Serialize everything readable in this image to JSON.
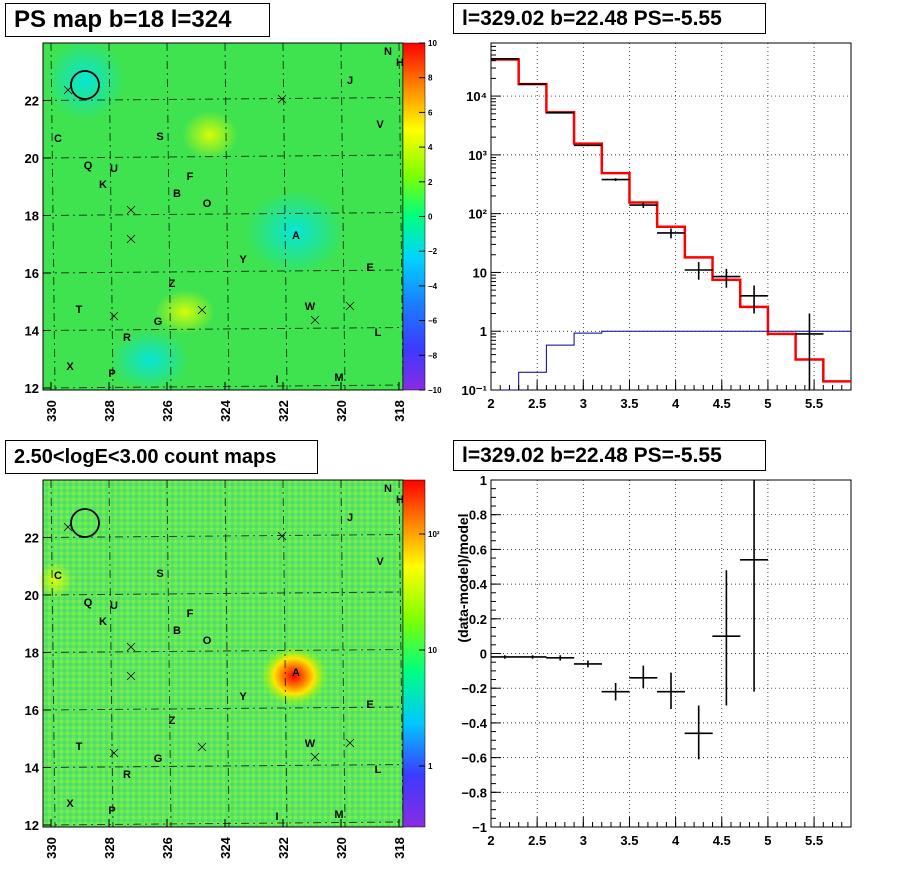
{
  "panels": {
    "ps_map": {
      "title": "PS map b=18 l=324",
      "xticks": [
        "330",
        "328",
        "326",
        "324",
        "322",
        "320",
        "318"
      ],
      "yticks": [
        "12",
        "14",
        "16",
        "18",
        "20",
        "22"
      ],
      "colorbar": {
        "ticks": [
          "10",
          "8",
          "6",
          "4",
          "2",
          "0",
          "−2",
          "−4",
          "−6",
          "−8",
          "−10"
        ],
        "range": [
          -10,
          10
        ]
      },
      "labels": [
        "N",
        "H",
        "J",
        "C",
        "V",
        "S",
        "Q",
        "U",
        "K",
        "F",
        "B",
        "O",
        "A",
        "Y",
        "E",
        "Z",
        "W",
        "T",
        "G",
        "R",
        "L",
        "X",
        "P",
        "I",
        "M"
      ],
      "crosses": 8
    },
    "count_map": {
      "title": "2.50<logE<3.00 count maps",
      "xticks": [
        "330",
        "328",
        "326",
        "324",
        "322",
        "320",
        "318"
      ],
      "yticks": [
        "12",
        "14",
        "16",
        "18",
        "20",
        "22"
      ],
      "colorbar": {
        "ticks": [
          "10²",
          "10",
          "1"
        ],
        "scale": "log"
      },
      "labels": [
        "N",
        "H",
        "J",
        "C",
        "V",
        "S",
        "Q",
        "U",
        "K",
        "F",
        "B",
        "O",
        "A",
        "Y",
        "E",
        "Z",
        "W",
        "T",
        "G",
        "R",
        "L",
        "X",
        "P",
        "I",
        "M"
      ],
      "crosses": 8
    }
  },
  "chart_data": [
    {
      "type": "line",
      "title": "l=329.02 b=22.48 PS=-5.55",
      "xlabel": "",
      "ylabel": "",
      "xlim": [
        2,
        5.9
      ],
      "ylim": [
        0.1,
        80000
      ],
      "yscale": "log",
      "grid": true,
      "xticks": [
        "2",
        "2.5",
        "3",
        "3.5",
        "4",
        "4.5",
        "5",
        "5.5"
      ],
      "yticks": [
        "10⁻¹",
        "1",
        "10",
        "10²",
        "10³",
        "10⁴"
      ],
      "bin_edges": [
        2.0,
        2.3,
        2.6,
        2.9,
        3.2,
        3.5,
        3.8,
        4.1,
        4.4,
        4.7,
        5.0,
        5.3,
        5.6,
        5.9
      ],
      "series": [
        {
          "color": "#ff0000",
          "style": "step",
          "values": [
            42000,
            16000,
            5300,
            1550,
            490,
            155,
            60,
            18,
            7.5,
            2.6,
            0.9,
            0.33,
            0.14
          ]
        },
        {
          "color": "#00008b",
          "style": "step",
          "values": [
            0.1,
            0.2,
            0.58,
            0.93,
            1.0,
            1.0,
            1.0,
            1.0,
            1.0,
            1.0,
            1.0,
            1.0,
            1.0
          ]
        },
        {
          "color": "#000000",
          "style": "errorbars",
          "points": [
            {
              "x": 2.15,
              "y": 43000,
              "lo": 42500,
              "hi": 43500
            },
            {
              "x": 2.45,
              "y": 16000,
              "lo": 15800,
              "hi": 16200
            },
            {
              "x": 2.75,
              "y": 5200,
              "lo": 5100,
              "hi": 5300
            },
            {
              "x": 3.05,
              "y": 1450,
              "lo": 1400,
              "hi": 1500
            },
            {
              "x": 3.35,
              "y": 380,
              "lo": 360,
              "hi": 400
            },
            {
              "x": 3.65,
              "y": 140,
              "lo": 125,
              "hi": 155
            },
            {
              "x": 3.95,
              "y": 47,
              "lo": 38,
              "hi": 56
            },
            {
              "x": 4.25,
              "y": 11,
              "lo": 7.5,
              "hi": 15
            },
            {
              "x": 4.55,
              "y": 8.5,
              "lo": 5.5,
              "hi": 11.5
            },
            {
              "x": 4.85,
              "y": 4,
              "lo": 2.0,
              "hi": 6.0
            },
            {
              "x": 5.45,
              "y": 0.9,
              "lo": 0.1,
              "hi": 2.0
            }
          ]
        }
      ]
    },
    {
      "type": "scatter",
      "title": "l=329.02 b=22.48 PS=-5.55",
      "xlabel": "",
      "ylabel": "(data-model)/model",
      "xlim": [
        2,
        5.9
      ],
      "ylim": [
        -1,
        1
      ],
      "grid": true,
      "xticks": [
        "2",
        "2.5",
        "3",
        "3.5",
        "4",
        "4.5",
        "5",
        "5.5"
      ],
      "yticks": [
        "−1",
        "−0.8",
        "−0.6",
        "−0.4",
        "−0.2",
        "0",
        "0.2",
        "0.4",
        "0.6",
        "0.8",
        "1"
      ],
      "series": [
        {
          "color": "#000000",
          "style": "errorbars",
          "points": [
            {
              "x": 2.15,
              "y": -0.02,
              "lo": -0.03,
              "hi": -0.01
            },
            {
              "x": 2.45,
              "y": -0.02,
              "lo": -0.03,
              "hi": -0.01
            },
            {
              "x": 2.75,
              "y": -0.025,
              "lo": -0.04,
              "hi": -0.01
            },
            {
              "x": 3.05,
              "y": -0.06,
              "lo": -0.08,
              "hi": -0.04
            },
            {
              "x": 3.35,
              "y": -0.22,
              "lo": -0.27,
              "hi": -0.17
            },
            {
              "x": 3.65,
              "y": -0.14,
              "lo": -0.2,
              "hi": -0.07
            },
            {
              "x": 3.95,
              "y": -0.22,
              "lo": -0.32,
              "hi": -0.11
            },
            {
              "x": 4.25,
              "y": -0.46,
              "lo": -0.61,
              "hi": -0.3
            },
            {
              "x": 4.55,
              "y": 0.1,
              "lo": -0.3,
              "hi": 0.48
            },
            {
              "x": 4.85,
              "y": 0.54,
              "lo": -0.22,
              "hi": 1.0
            }
          ]
        }
      ]
    }
  ]
}
